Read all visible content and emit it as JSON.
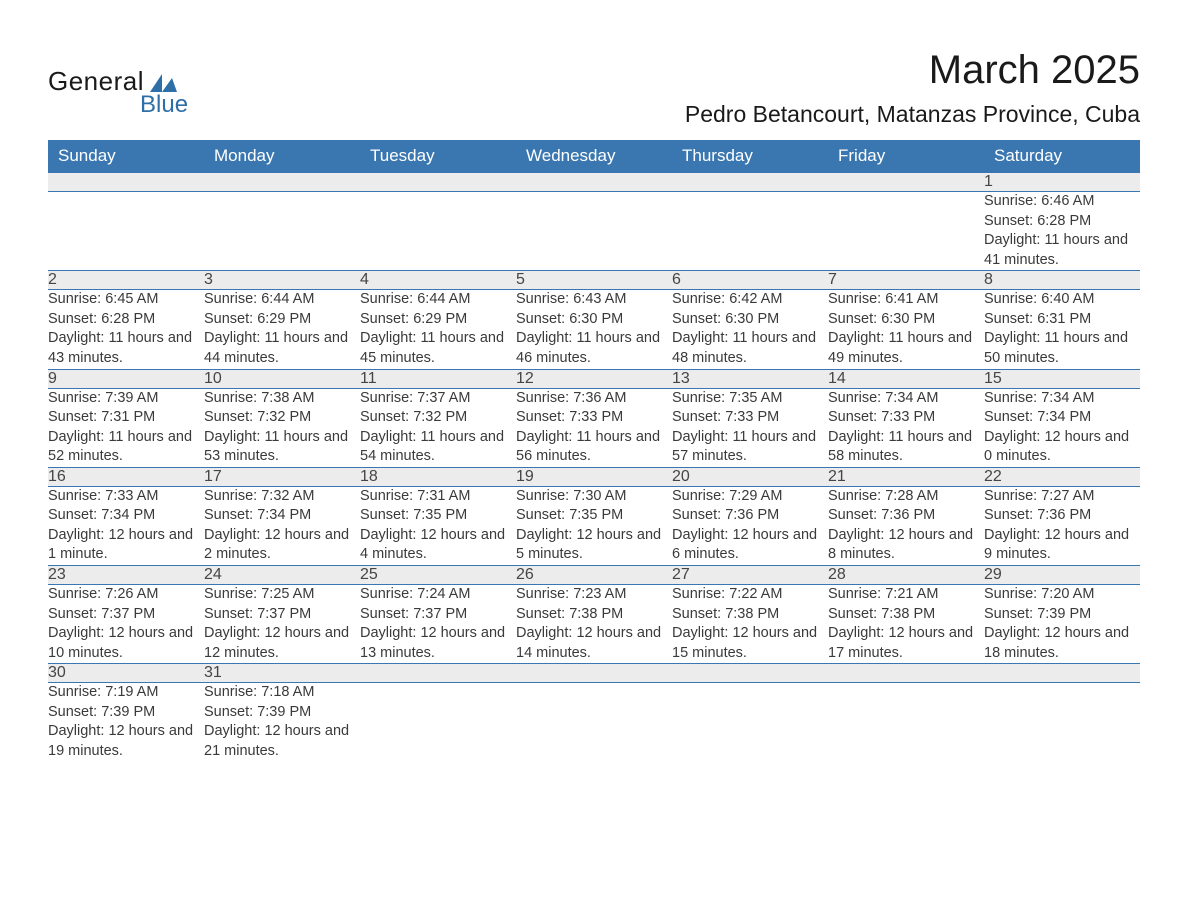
{
  "logo": {
    "main": "General",
    "sub": "Blue"
  },
  "title": "March 2025",
  "location": "Pedro Betancourt, Matanzas Province, Cuba",
  "colors": {
    "header_bg": "#3a77b0",
    "header_text": "#ffffff",
    "daynum_bg": "#ececec",
    "border": "#3a77b0",
    "body_text": "#3a3a3a",
    "logo_accent": "#2f6fa7"
  },
  "weekdays": [
    "Sunday",
    "Monday",
    "Tuesday",
    "Wednesday",
    "Thursday",
    "Friday",
    "Saturday"
  ],
  "weeks": [
    [
      null,
      null,
      null,
      null,
      null,
      null,
      {
        "n": "1",
        "sunrise": "6:46 AM",
        "sunset": "6:28 PM",
        "daylight": "11 hours and 41 minutes."
      }
    ],
    [
      {
        "n": "2",
        "sunrise": "6:45 AM",
        "sunset": "6:28 PM",
        "daylight": "11 hours and 43 minutes."
      },
      {
        "n": "3",
        "sunrise": "6:44 AM",
        "sunset": "6:29 PM",
        "daylight": "11 hours and 44 minutes."
      },
      {
        "n": "4",
        "sunrise": "6:44 AM",
        "sunset": "6:29 PM",
        "daylight": "11 hours and 45 minutes."
      },
      {
        "n": "5",
        "sunrise": "6:43 AM",
        "sunset": "6:30 PM",
        "daylight": "11 hours and 46 minutes."
      },
      {
        "n": "6",
        "sunrise": "6:42 AM",
        "sunset": "6:30 PM",
        "daylight": "11 hours and 48 minutes."
      },
      {
        "n": "7",
        "sunrise": "6:41 AM",
        "sunset": "6:30 PM",
        "daylight": "11 hours and 49 minutes."
      },
      {
        "n": "8",
        "sunrise": "6:40 AM",
        "sunset": "6:31 PM",
        "daylight": "11 hours and 50 minutes."
      }
    ],
    [
      {
        "n": "9",
        "sunrise": "7:39 AM",
        "sunset": "7:31 PM",
        "daylight": "11 hours and 52 minutes."
      },
      {
        "n": "10",
        "sunrise": "7:38 AM",
        "sunset": "7:32 PM",
        "daylight": "11 hours and 53 minutes."
      },
      {
        "n": "11",
        "sunrise": "7:37 AM",
        "sunset": "7:32 PM",
        "daylight": "11 hours and 54 minutes."
      },
      {
        "n": "12",
        "sunrise": "7:36 AM",
        "sunset": "7:33 PM",
        "daylight": "11 hours and 56 minutes."
      },
      {
        "n": "13",
        "sunrise": "7:35 AM",
        "sunset": "7:33 PM",
        "daylight": "11 hours and 57 minutes."
      },
      {
        "n": "14",
        "sunrise": "7:34 AM",
        "sunset": "7:33 PM",
        "daylight": "11 hours and 58 minutes."
      },
      {
        "n": "15",
        "sunrise": "7:34 AM",
        "sunset": "7:34 PM",
        "daylight": "12 hours and 0 minutes."
      }
    ],
    [
      {
        "n": "16",
        "sunrise": "7:33 AM",
        "sunset": "7:34 PM",
        "daylight": "12 hours and 1 minute."
      },
      {
        "n": "17",
        "sunrise": "7:32 AM",
        "sunset": "7:34 PM",
        "daylight": "12 hours and 2 minutes."
      },
      {
        "n": "18",
        "sunrise": "7:31 AM",
        "sunset": "7:35 PM",
        "daylight": "12 hours and 4 minutes."
      },
      {
        "n": "19",
        "sunrise": "7:30 AM",
        "sunset": "7:35 PM",
        "daylight": "12 hours and 5 minutes."
      },
      {
        "n": "20",
        "sunrise": "7:29 AM",
        "sunset": "7:36 PM",
        "daylight": "12 hours and 6 minutes."
      },
      {
        "n": "21",
        "sunrise": "7:28 AM",
        "sunset": "7:36 PM",
        "daylight": "12 hours and 8 minutes."
      },
      {
        "n": "22",
        "sunrise": "7:27 AM",
        "sunset": "7:36 PM",
        "daylight": "12 hours and 9 minutes."
      }
    ],
    [
      {
        "n": "23",
        "sunrise": "7:26 AM",
        "sunset": "7:37 PM",
        "daylight": "12 hours and 10 minutes."
      },
      {
        "n": "24",
        "sunrise": "7:25 AM",
        "sunset": "7:37 PM",
        "daylight": "12 hours and 12 minutes."
      },
      {
        "n": "25",
        "sunrise": "7:24 AM",
        "sunset": "7:37 PM",
        "daylight": "12 hours and 13 minutes."
      },
      {
        "n": "26",
        "sunrise": "7:23 AM",
        "sunset": "7:38 PM",
        "daylight": "12 hours and 14 minutes."
      },
      {
        "n": "27",
        "sunrise": "7:22 AM",
        "sunset": "7:38 PM",
        "daylight": "12 hours and 15 minutes."
      },
      {
        "n": "28",
        "sunrise": "7:21 AM",
        "sunset": "7:38 PM",
        "daylight": "12 hours and 17 minutes."
      },
      {
        "n": "29",
        "sunrise": "7:20 AM",
        "sunset": "7:39 PM",
        "daylight": "12 hours and 18 minutes."
      }
    ],
    [
      {
        "n": "30",
        "sunrise": "7:19 AM",
        "sunset": "7:39 PM",
        "daylight": "12 hours and 19 minutes."
      },
      {
        "n": "31",
        "sunrise": "7:18 AM",
        "sunset": "7:39 PM",
        "daylight": "12 hours and 21 minutes."
      },
      null,
      null,
      null,
      null,
      null
    ]
  ],
  "labels": {
    "sunrise": "Sunrise: ",
    "sunset": "Sunset: ",
    "daylight": "Daylight: "
  }
}
